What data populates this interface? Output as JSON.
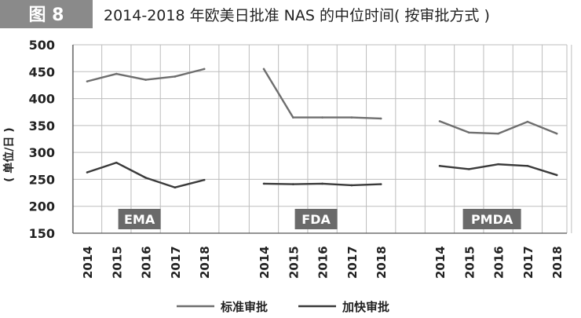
{
  "figure": {
    "badge": "图 8",
    "title": "2014-2018 年欧美日批准 NAS 的中位时间( 按审批方式 )"
  },
  "chart_data": {
    "type": "line",
    "ylabel": "( 单位/日 )",
    "ylim": [
      150,
      500
    ],
    "yticks": [
      150,
      200,
      250,
      300,
      350,
      400,
      450,
      500
    ],
    "grid": true,
    "legend_position": "bottom",
    "colors": {
      "standard": "#6e6e6e",
      "expedited": "#3a3a3a",
      "region_box": "#6a6a6a",
      "grid": "#bdbdbd",
      "badge": "#8a8a8a"
    },
    "groups": [
      {
        "label": "EMA",
        "x": [
          "2014",
          "2015",
          "2016",
          "2017",
          "2018"
        ],
        "series": [
          {
            "name": "标准审批",
            "values": [
              432,
              446,
              435,
              441,
              455
            ]
          },
          {
            "name": "加快审批",
            "values": [
              263,
              281,
              253,
              235,
              249
            ]
          }
        ]
      },
      {
        "label": "FDA",
        "x": [
          "2014",
          "2015",
          "2016",
          "2017",
          "2018"
        ],
        "series": [
          {
            "name": "标准审批",
            "values": [
              455,
              365,
              365,
              365,
              363
            ]
          },
          {
            "name": "加快审批",
            "values": [
              242,
              241,
              242,
              239,
              241
            ]
          }
        ]
      },
      {
        "label": "PMDA",
        "x": [
          "2014",
          "2015",
          "2016",
          "2017",
          "2018"
        ],
        "series": [
          {
            "name": "标准审批",
            "values": [
              358,
              337,
              335,
              357,
              335
            ]
          },
          {
            "name": "加快审批",
            "values": [
              275,
              269,
              278,
              275,
              258
            ]
          }
        ]
      }
    ],
    "legend": [
      "标准审批",
      "加快审批"
    ]
  }
}
